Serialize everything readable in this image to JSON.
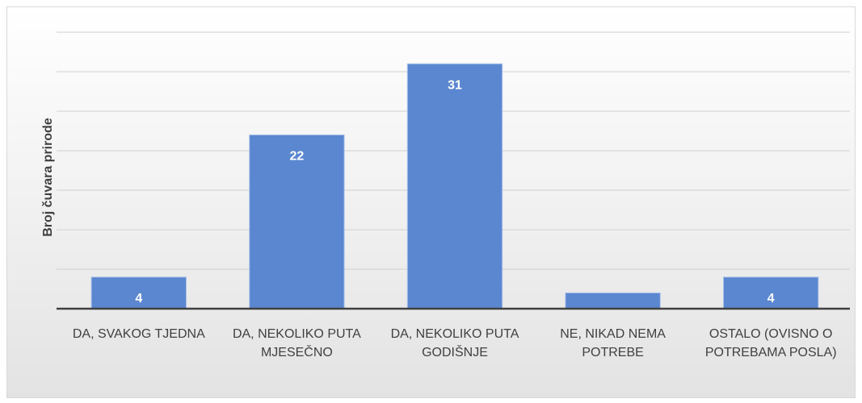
{
  "chart_data": {
    "type": "bar",
    "y_label": "Broj čuvara prirode",
    "categories": [
      "DA, SVAKOG TJEDNA",
      "DA, NEKOLIKO PUTA MJESEČNO",
      "DA, NEKOLIKO PUTA GODIŠNJE",
      "NE, NIKAD NEMA POTREBE",
      "OSTALO (OVISNO O POTREBAMA POSLA)"
    ],
    "values": [
      4,
      22,
      31,
      2,
      4
    ],
    "value_labels": [
      "4",
      "22",
      "31",
      null,
      "4"
    ],
    "color": "#5b87d0",
    "ylim": [
      0,
      35
    ],
    "yticks": [
      0,
      5,
      10,
      15,
      20,
      25,
      30,
      35
    ],
    "show_ytick_labels": false,
    "grid": true
  }
}
